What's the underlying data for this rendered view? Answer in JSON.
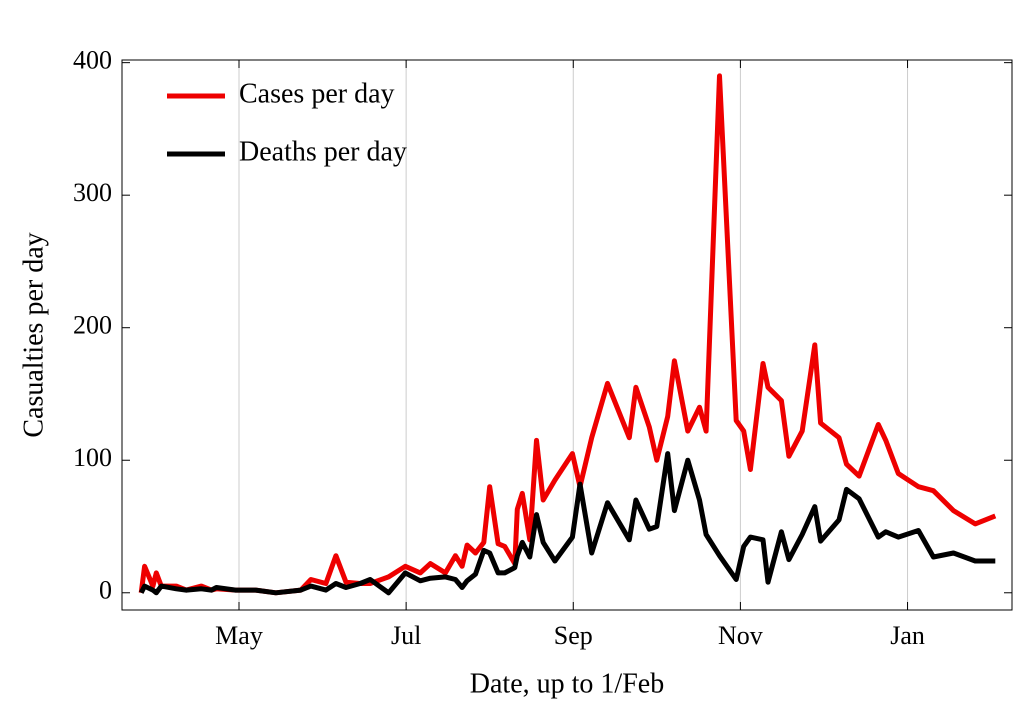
{
  "chart_data": {
    "type": "line",
    "x_label": "Date, up to 1/Feb",
    "y_label": "Casualties per day",
    "x": [
      3.83,
      3.87,
      3.97,
      4.01,
      4.07,
      4.25,
      4.37,
      4.55,
      4.67,
      4.73,
      4.96,
      5.2,
      5.44,
      5.74,
      5.86,
      6.04,
      6.16,
      6.28,
      6.45,
      6.57,
      6.79,
      6.99,
      7.17,
      7.29,
      7.47,
      7.59,
      7.67,
      7.73,
      7.83,
      7.93,
      8.0,
      8.1,
      8.18,
      8.3,
      8.33,
      8.39,
      8.48,
      8.56,
      8.64,
      8.78,
      8.99,
      9.08,
      9.22,
      9.41,
      9.67,
      9.75,
      9.91,
      10.0,
      10.13,
      10.21,
      10.37,
      10.51,
      10.59,
      10.75,
      10.95,
      11.04,
      11.12,
      11.27,
      11.33,
      11.49,
      11.58,
      11.74,
      11.89,
      11.96,
      12.18,
      12.27,
      12.42,
      12.65,
      12.74,
      12.89,
      13.13,
      13.31,
      13.55,
      13.81,
      14.05
    ],
    "series": [
      {
        "name": "Cases per day",
        "color": "#ee0000",
        "values": [
          0,
          20,
          5,
          15,
          5,
          5,
          2,
          5,
          2,
          3,
          2,
          2,
          0,
          2,
          10,
          7,
          28,
          8,
          7,
          7,
          12,
          20,
          15,
          22,
          15,
          28,
          20,
          36,
          30,
          38,
          80,
          37,
          35,
          22,
          63,
          75,
          40,
          115,
          70,
          85,
          105,
          80,
          117,
          158,
          117,
          155,
          125,
          100,
          133,
          175,
          122,
          140,
          122,
          390,
          130,
          122,
          93,
          173,
          155,
          145,
          103,
          122,
          187,
          128,
          117,
          97,
          88,
          127,
          115,
          90,
          80,
          77,
          62,
          52,
          58
        ]
      },
      {
        "name": "Deaths per day",
        "color": "#000000",
        "values": [
          0,
          5,
          2,
          0,
          5,
          3,
          2,
          3,
          2,
          4,
          2,
          2,
          0,
          2,
          5,
          2,
          7,
          4,
          7,
          10,
          0,
          15,
          9,
          11,
          12,
          10,
          4,
          9,
          14,
          32,
          30,
          15,
          15,
          19,
          28,
          38,
          27,
          59,
          38,
          24,
          42,
          82,
          30,
          68,
          40,
          70,
          48,
          50,
          105,
          62,
          100,
          70,
          44,
          28,
          10,
          35,
          42,
          40,
          8,
          46,
          25,
          44,
          65,
          39,
          55,
          78,
          71,
          42,
          46,
          42,
          47,
          27,
          30,
          24,
          24
        ]
      }
    ],
    "xlim": [
      3.6,
      14.25
    ],
    "ylim": [
      -13,
      402
    ],
    "xticks": [
      {
        "value": 5,
        "label": "May"
      },
      {
        "value": 7,
        "label": "Jul"
      },
      {
        "value": 9,
        "label": "Sep"
      },
      {
        "value": 11,
        "label": "Nov"
      },
      {
        "value": 13,
        "label": "Jan"
      }
    ],
    "yticks": [
      0,
      100,
      200,
      300,
      400
    ],
    "grid": "x",
    "legend": "upper left"
  }
}
